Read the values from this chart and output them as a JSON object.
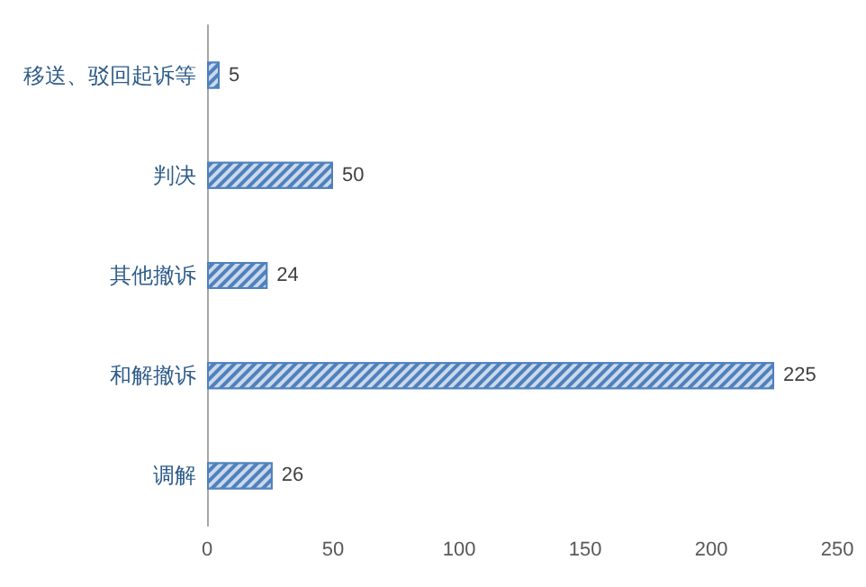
{
  "chart_data": {
    "type": "bar",
    "orientation": "horizontal",
    "categories": [
      "移送、驳回起诉等",
      "判决",
      "其他撤诉",
      "和解撤诉",
      "调解"
    ],
    "values": [
      5,
      50,
      24,
      225,
      26
    ],
    "color": "#4f81bd",
    "xlim": [
      0,
      250
    ],
    "xticks": [
      0,
      50,
      100,
      150,
      200,
      250
    ],
    "grid": false,
    "data_labels": true
  }
}
